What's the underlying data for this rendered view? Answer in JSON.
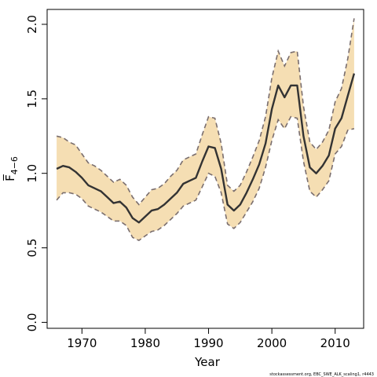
{
  "chart_data": {
    "type": "line",
    "xlabel": "Year",
    "ylabel": "F̅",
    "ylabel_subscript": "4−6",
    "xlim": [
      1964.5,
      2014.5
    ],
    "ylim": [
      -0.04,
      2.1
    ],
    "xticks": [
      1970,
      1980,
      1990,
      2000,
      2010
    ],
    "yticks": [
      0.0,
      0.5,
      1.0,
      1.5,
      2.0
    ],
    "ytick_labels": [
      "0.0",
      "0.5",
      "1.0",
      "1.5",
      "2.0"
    ],
    "grid": false,
    "colors": {
      "band": "#f5deb3",
      "line": "#333333",
      "bound": "#7a6e6e"
    },
    "x": [
      1966,
      1967,
      1968,
      1969,
      1970,
      1971,
      1972,
      1973,
      1974,
      1975,
      1976,
      1977,
      1978,
      1979,
      1980,
      1981,
      1982,
      1983,
      1984,
      1985,
      1986,
      1987,
      1988,
      1989,
      1990,
      1991,
      1992,
      1993,
      1994,
      1995,
      1996,
      1997,
      1998,
      1999,
      2000,
      2001,
      2002,
      2003,
      2004,
      2005,
      2006,
      2007,
      2008,
      2009,
      2010,
      2011,
      2012,
      2013
    ],
    "series": [
      {
        "role": "estimate",
        "values": [
          1.03,
          1.05,
          1.04,
          1.01,
          0.97,
          0.92,
          0.9,
          0.88,
          0.84,
          0.8,
          0.81,
          0.77,
          0.7,
          0.67,
          0.71,
          0.75,
          0.76,
          0.79,
          0.83,
          0.87,
          0.93,
          0.95,
          0.97,
          1.08,
          1.18,
          1.17,
          1.03,
          0.79,
          0.75,
          0.79,
          0.87,
          0.96,
          1.06,
          1.2,
          1.43,
          1.59,
          1.51,
          1.59,
          1.59,
          1.25,
          1.04,
          1.0,
          1.05,
          1.12,
          1.3,
          1.37,
          1.52,
          1.67
        ]
      },
      {
        "role": "upper",
        "values": [
          1.25,
          1.24,
          1.21,
          1.19,
          1.13,
          1.07,
          1.05,
          1.02,
          0.98,
          0.94,
          0.96,
          0.92,
          0.84,
          0.79,
          0.84,
          0.89,
          0.9,
          0.93,
          0.98,
          1.02,
          1.09,
          1.11,
          1.13,
          1.26,
          1.38,
          1.37,
          1.2,
          0.92,
          0.88,
          0.92,
          1.01,
          1.11,
          1.22,
          1.38,
          1.64,
          1.82,
          1.72,
          1.81,
          1.82,
          1.45,
          1.21,
          1.16,
          1.21,
          1.29,
          1.48,
          1.57,
          1.77,
          2.04
        ]
      },
      {
        "role": "lower",
        "values": [
          0.82,
          0.87,
          0.87,
          0.86,
          0.83,
          0.78,
          0.76,
          0.74,
          0.71,
          0.68,
          0.68,
          0.65,
          0.57,
          0.55,
          0.58,
          0.61,
          0.62,
          0.65,
          0.69,
          0.73,
          0.78,
          0.8,
          0.82,
          0.91,
          1.0,
          0.98,
          0.87,
          0.66,
          0.63,
          0.67,
          0.74,
          0.81,
          0.9,
          1.04,
          1.22,
          1.36,
          1.3,
          1.38,
          1.37,
          1.08,
          0.88,
          0.84,
          0.89,
          0.95,
          1.13,
          1.18,
          1.29,
          1.3
        ]
      }
    ]
  },
  "footer": {
    "note": "stockassessment.org, EBC_SWE_ALK_scaling1, r4443"
  }
}
